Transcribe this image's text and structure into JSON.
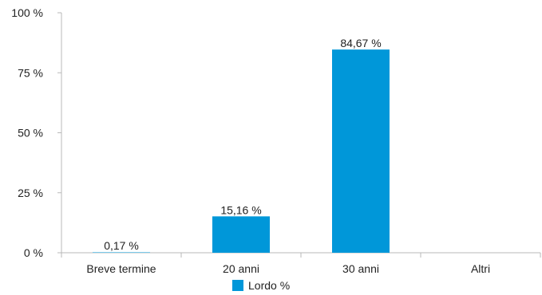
{
  "chart_data": {
    "type": "bar",
    "title": "",
    "xlabel": "",
    "ylabel": "",
    "categories": [
      "Breve termine",
      "20 anni",
      "30 anni",
      "Altri"
    ],
    "series": [
      {
        "name": "Lordo %",
        "values": [
          0.17,
          15.16,
          84.67,
          null
        ],
        "value_labels": [
          "0,17 %",
          "15,16 %",
          "84,67 %",
          ""
        ],
        "color": "#0097d9"
      }
    ],
    "ylim": [
      0,
      100
    ],
    "yticks": [
      0,
      25,
      50,
      75,
      100
    ],
    "ytick_labels": [
      "0 %",
      "25 %",
      "50 %",
      "75 %",
      "100 %"
    ],
    "grid": false,
    "legend_position": "bottom-center"
  }
}
